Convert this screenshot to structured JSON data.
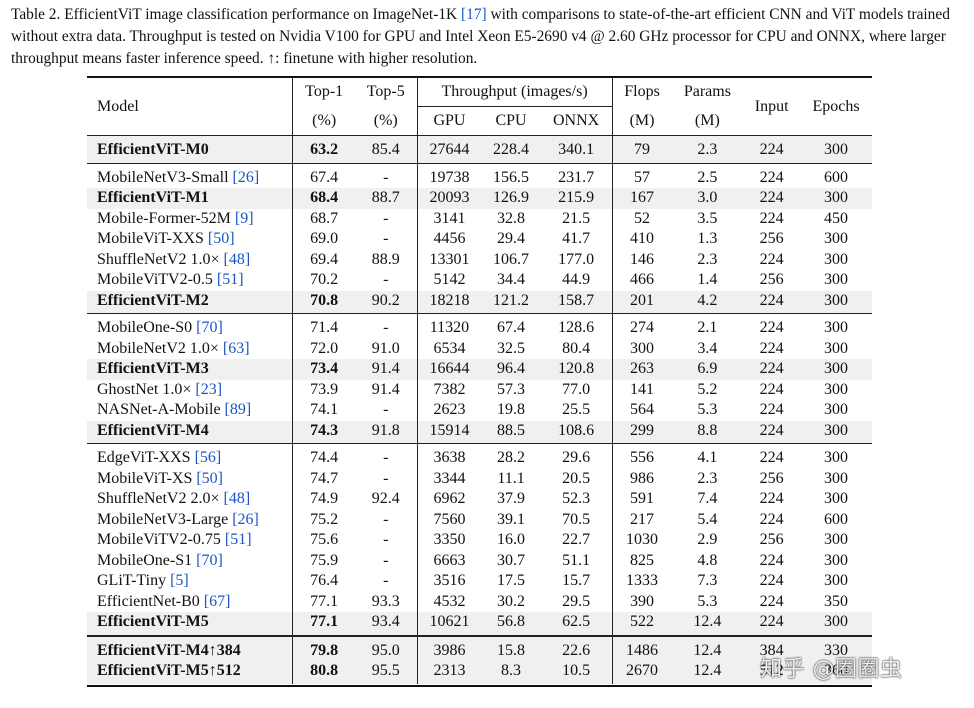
{
  "caption": {
    "prefix": "Table 2. EfficientViT image classification performance on ImageNet-1K ",
    "ref": "[17]",
    "suffix": " with comparisons to state-of-the-art efficient CNN and ViT models trained without extra data. Throughput is tested on Nvidia V100 for GPU and Intel Xeon E5-2690 v4 @ 2.60 GHz processor for CPU and ONNX, where larger throughput means faster inference speed. ↑: finetune with higher resolution."
  },
  "header": {
    "model": "Model",
    "top1": "Top-1",
    "top1_unit": "(%)",
    "top5": "Top-5",
    "top5_unit": "(%)",
    "throughput": "Throughput (images/s)",
    "gpu": "GPU",
    "cpu": "CPU",
    "onnx": "ONNX",
    "flops": "Flops",
    "flops_unit": "(M)",
    "params": "Params",
    "params_unit": "(M)",
    "input": "Input",
    "epochs": "Epochs"
  },
  "groups": [
    [
      {
        "name": "EfficientViT-M0",
        "ref": "",
        "top1": "63.2",
        "top5": "85.4",
        "gpu": "27644",
        "cpu": "228.4",
        "onnx": "340.1",
        "flops": "79",
        "params": "2.3",
        "input": "224",
        "epochs": "300",
        "highlight": true
      }
    ],
    [
      {
        "name": "MobileNetV3-Small ",
        "ref": "[26]",
        "top1": "67.4",
        "top5": "-",
        "gpu": "19738",
        "cpu": "156.5",
        "onnx": "231.7",
        "flops": "57",
        "params": "2.5",
        "input": "224",
        "epochs": "600",
        "highlight": false
      },
      {
        "name": "EfficientViT-M1",
        "ref": "",
        "top1": "68.4",
        "top5": "88.7",
        "gpu": "20093",
        "cpu": "126.9",
        "onnx": "215.9",
        "flops": "167",
        "params": "3.0",
        "input": "224",
        "epochs": "300",
        "highlight": true
      },
      {
        "name": "Mobile-Former-52M ",
        "ref": "[9]",
        "top1": "68.7",
        "top5": "-",
        "gpu": "3141",
        "cpu": "32.8",
        "onnx": "21.5",
        "flops": "52",
        "params": "3.5",
        "input": "224",
        "epochs": "450",
        "highlight": false
      },
      {
        "name": "MobileViT-XXS ",
        "ref": "[50]",
        "top1": "69.0",
        "top5": "-",
        "gpu": "4456",
        "cpu": "29.4",
        "onnx": "41.7",
        "flops": "410",
        "params": "1.3",
        "input": "256",
        "epochs": "300",
        "highlight": false
      },
      {
        "name": "ShuffleNetV2 1.0× ",
        "ref": "[48]",
        "top1": "69.4",
        "top5": "88.9",
        "gpu": "13301",
        "cpu": "106.7",
        "onnx": "177.0",
        "flops": "146",
        "params": "2.3",
        "input": "224",
        "epochs": "300",
        "highlight": false
      },
      {
        "name": "MobileViTV2-0.5 ",
        "ref": "[51]",
        "top1": "70.2",
        "top5": "-",
        "gpu": "5142",
        "cpu": "34.4",
        "onnx": "44.9",
        "flops": "466",
        "params": "1.4",
        "input": "256",
        "epochs": "300",
        "highlight": false
      },
      {
        "name": "EfficientViT-M2",
        "ref": "",
        "top1": "70.8",
        "top5": "90.2",
        "gpu": "18218",
        "cpu": "121.2",
        "onnx": "158.7",
        "flops": "201",
        "params": "4.2",
        "input": "224",
        "epochs": "300",
        "highlight": true
      }
    ],
    [
      {
        "name": "MobileOne-S0 ",
        "ref": "[70]",
        "top1": "71.4",
        "top5": "-",
        "gpu": "11320",
        "cpu": "67.4",
        "onnx": "128.6",
        "flops": "274",
        "params": "2.1",
        "input": "224",
        "epochs": "300",
        "highlight": false
      },
      {
        "name": "MobileNetV2 1.0× ",
        "ref": "[63]",
        "top1": "72.0",
        "top5": "91.0",
        "gpu": "6534",
        "cpu": "32.5",
        "onnx": "80.4",
        "flops": "300",
        "params": "3.4",
        "input": "224",
        "epochs": "300",
        "highlight": false
      },
      {
        "name": "EfficientViT-M3",
        "ref": "",
        "top1": "73.4",
        "top5": "91.4",
        "gpu": "16644",
        "cpu": "96.4",
        "onnx": "120.8",
        "flops": "263",
        "params": "6.9",
        "input": "224",
        "epochs": "300",
        "highlight": true
      },
      {
        "name": "GhostNet 1.0× ",
        "ref": "[23]",
        "top1": "73.9",
        "top5": "91.4",
        "gpu": "7382",
        "cpu": "57.3",
        "onnx": "77.0",
        "flops": "141",
        "params": "5.2",
        "input": "224",
        "epochs": "300",
        "highlight": false
      },
      {
        "name": "NASNet-A-Mobile ",
        "ref": "[89]",
        "top1": "74.1",
        "top5": "-",
        "gpu": "2623",
        "cpu": "19.8",
        "onnx": "25.5",
        "flops": "564",
        "params": "5.3",
        "input": "224",
        "epochs": "300",
        "highlight": false
      },
      {
        "name": "EfficientViT-M4",
        "ref": "",
        "top1": "74.3",
        "top5": "91.8",
        "gpu": "15914",
        "cpu": "88.5",
        "onnx": "108.6",
        "flops": "299",
        "params": "8.8",
        "input": "224",
        "epochs": "300",
        "highlight": true
      }
    ],
    [
      {
        "name": "EdgeViT-XXS ",
        "ref": "[56]",
        "top1": "74.4",
        "top5": "-",
        "gpu": "3638",
        "cpu": "28.2",
        "onnx": "29.6",
        "flops": "556",
        "params": "4.1",
        "input": "224",
        "epochs": "300",
        "highlight": false
      },
      {
        "name": "MobileViT-XS ",
        "ref": "[50]",
        "top1": "74.7",
        "top5": "-",
        "gpu": "3344",
        "cpu": "11.1",
        "onnx": "20.5",
        "flops": "986",
        "params": "2.3",
        "input": "256",
        "epochs": "300",
        "highlight": false
      },
      {
        "name": "ShuffleNetV2 2.0× ",
        "ref": "[48]",
        "top1": "74.9",
        "top5": "92.4",
        "gpu": "6962",
        "cpu": "37.9",
        "onnx": "52.3",
        "flops": "591",
        "params": "7.4",
        "input": "224",
        "epochs": "300",
        "highlight": false
      },
      {
        "name": "MobileNetV3-Large ",
        "ref": "[26]",
        "top1": "75.2",
        "top5": "-",
        "gpu": "7560",
        "cpu": "39.1",
        "onnx": "70.5",
        "flops": "217",
        "params": "5.4",
        "input": "224",
        "epochs": "600",
        "highlight": false
      },
      {
        "name": "MobileViTV2-0.75 ",
        "ref": "[51]",
        "top1": "75.6",
        "top5": "-",
        "gpu": "3350",
        "cpu": "16.0",
        "onnx": "22.7",
        "flops": "1030",
        "params": "2.9",
        "input": "256",
        "epochs": "300",
        "highlight": false
      },
      {
        "name": "MobileOne-S1 ",
        "ref": "[70]",
        "top1": "75.9",
        "top5": "-",
        "gpu": "6663",
        "cpu": "30.7",
        "onnx": "51.1",
        "flops": "825",
        "params": "4.8",
        "input": "224",
        "epochs": "300",
        "highlight": false
      },
      {
        "name": "GLiT-Tiny ",
        "ref": "[5]",
        "top1": "76.4",
        "top5": "-",
        "gpu": "3516",
        "cpu": "17.5",
        "onnx": "15.7",
        "flops": "1333",
        "params": "7.3",
        "input": "224",
        "epochs": "300",
        "highlight": false
      },
      {
        "name": "EfficientNet-B0 ",
        "ref": "[67]",
        "top1": "77.1",
        "top5": "93.3",
        "gpu": "4532",
        "cpu": "30.2",
        "onnx": "29.5",
        "flops": "390",
        "params": "5.3",
        "input": "224",
        "epochs": "350",
        "highlight": false
      },
      {
        "name": "EfficientViT-M5",
        "ref": "",
        "top1": "77.1",
        "top5": "93.4",
        "gpu": "10621",
        "cpu": "56.8",
        "onnx": "62.5",
        "flops": "522",
        "params": "12.4",
        "input": "224",
        "epochs": "300",
        "highlight": true
      }
    ],
    [
      {
        "name": "EfficientViT-M4↑384",
        "ref": "",
        "top1": "79.8",
        "top5": "95.0",
        "gpu": "3986",
        "cpu": "15.8",
        "onnx": "22.6",
        "flops": "1486",
        "params": "12.4",
        "input": "384",
        "epochs": "330",
        "highlight": true
      },
      {
        "name": "EfficientViT-M5↑512",
        "ref": "",
        "top1": "80.8",
        "top5": "95.5",
        "gpu": "2313",
        "cpu": "8.3",
        "onnx": "10.5",
        "flops": "2670",
        "params": "12.4",
        "input": "512",
        "epochs": "360",
        "highlight": true
      }
    ]
  ],
  "watermark": "知乎 @圈圈虫"
}
